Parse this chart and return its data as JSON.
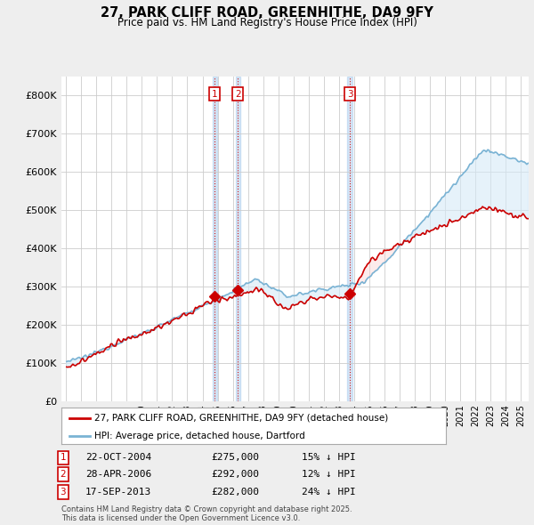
{
  "title": "27, PARK CLIFF ROAD, GREENHITHE, DA9 9FY",
  "subtitle": "Price paid vs. HM Land Registry's House Price Index (HPI)",
  "ylim": [
    0,
    850000
  ],
  "yticks": [
    0,
    100000,
    200000,
    300000,
    400000,
    500000,
    600000,
    700000,
    800000
  ],
  "ytick_labels": [
    "£0",
    "£100K",
    "£200K",
    "£300K",
    "£400K",
    "£500K",
    "£600K",
    "£700K",
    "£800K"
  ],
  "hpi_color": "#7ab3d4",
  "hpi_fill_color": "#d6eaf8",
  "price_color": "#cc0000",
  "purchase_dates_num": [
    2004.81,
    2006.33,
    2013.71
  ],
  "purchase_prices": [
    275000,
    292000,
    282000
  ],
  "purchase_labels": [
    "1",
    "2",
    "3"
  ],
  "legend_line1": "27, PARK CLIFF ROAD, GREENHITHE, DA9 9FY (detached house)",
  "legend_line2": "HPI: Average price, detached house, Dartford",
  "table_data": [
    {
      "num": "1",
      "date": "22-OCT-2004",
      "price": "£275,000",
      "hpi": "15% ↓ HPI"
    },
    {
      "num": "2",
      "date": "28-APR-2006",
      "price": "£292,000",
      "hpi": "12% ↓ HPI"
    },
    {
      "num": "3",
      "date": "17-SEP-2013",
      "price": "£282,000",
      "hpi": "24% ↓ HPI"
    }
  ],
  "footer": "Contains HM Land Registry data © Crown copyright and database right 2025.\nThis data is licensed under the Open Government Licence v3.0.",
  "bg_color": "#eeeeee",
  "plot_bg_color": "#ffffff",
  "grid_color": "#cccccc",
  "xlim_left": 1994.7,
  "xlim_right": 2025.5
}
